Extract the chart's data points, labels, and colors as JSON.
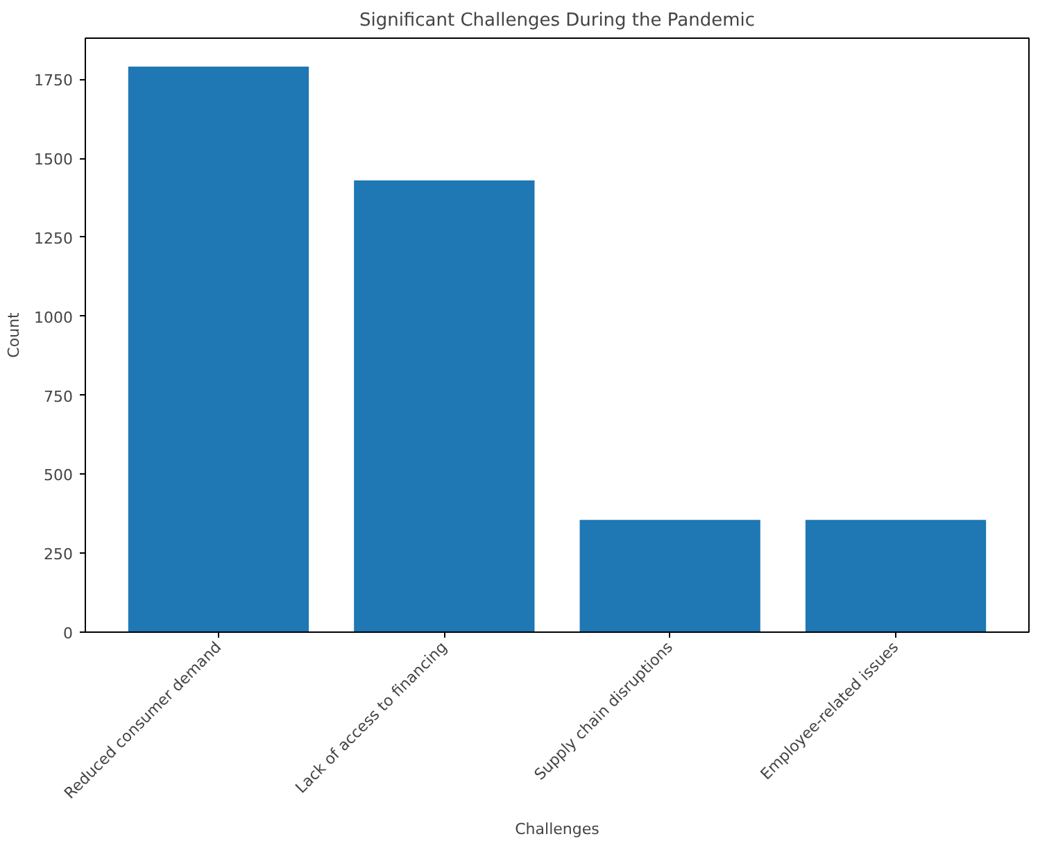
{
  "chart_data": {
    "type": "bar",
    "title": "Significant Challenges During the Pandemic",
    "xlabel": "Challenges",
    "ylabel": "Count",
    "categories": [
      "Reduced consumer demand",
      "Lack of access to financing",
      "Supply chain disruptions",
      "Employee-related issues"
    ],
    "values": [
      1790,
      1430,
      355,
      355
    ],
    "color": "#1f77b4",
    "ylim": [
      0,
      1880
    ],
    "yticks": [
      0,
      250,
      500,
      750,
      1000,
      1250,
      1500,
      1750
    ],
    "grid": false
  }
}
